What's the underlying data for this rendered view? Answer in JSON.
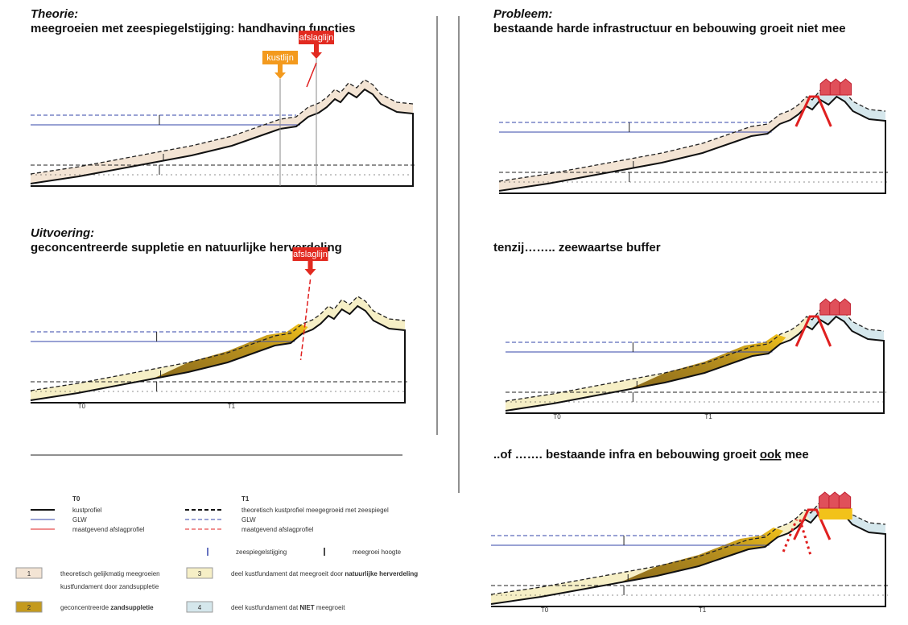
{
  "panels": [
    {
      "heading": "Theorie:",
      "subtitle": "meegroeien met zeespiegelstijging: handhaving functies",
      "markers": [
        "kustlijn",
        "afslaglijn"
      ]
    },
    {
      "heading": "Uitvoering:",
      "subtitle": "geconcentreerde suppletie en natuurlijke herverdeling",
      "markers": [
        "afslaglijn"
      ],
      "time_labels": [
        "T0",
        "T1"
      ]
    },
    {
      "heading": "Probleem:",
      "subtitle": "bestaande harde infrastructuur en bebouwing groeit niet mee"
    },
    {
      "subtitle": "tenzij…….. zeewaartse buffer",
      "time_labels": [
        "T0",
        "T1"
      ]
    },
    {
      "subtitle_parts": [
        "..of ……. bestaande infra en bebouwing groeit ",
        "ook",
        " mee"
      ],
      "time_labels": [
        "T0",
        "T1"
      ]
    }
  ],
  "legend": {
    "t0_heading": "T0",
    "t1_heading": "T1",
    "t0_items": [
      "kustprofiel",
      "GLW",
      "maatgevend afslagprofiel"
    ],
    "t1_items": [
      "theoretisch kustprofiel meegegroeid met zeespiegel",
      "GLW",
      "maatgevend afslagprofiel"
    ],
    "arrows": [
      "zeespiegelstijging",
      "meegroei hoogte"
    ],
    "zones": [
      {
        "number": "1",
        "lines": [
          "theoretisch gelijkmatig meegroeien",
          "kustfundament door zandsuppletie"
        ]
      },
      {
        "number": "3",
        "text_parts": [
          "deel kustfundament dat meegroeit door ",
          "natuurlijke herverdeling"
        ]
      },
      {
        "number": "2",
        "text_parts": [
          "geconcentreerde ",
          "zandsuppletie"
        ]
      },
      {
        "number": "4",
        "text_parts": [
          "deel kustfundament dat ",
          "NIET",
          " meegroeit"
        ]
      }
    ]
  }
}
